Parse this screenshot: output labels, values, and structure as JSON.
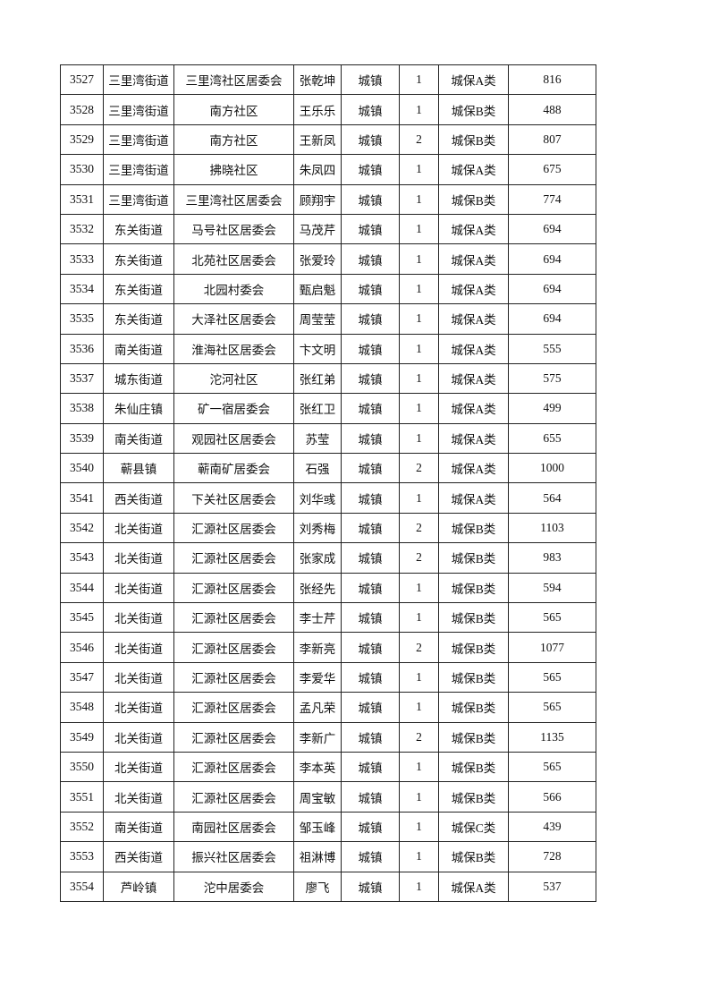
{
  "table": {
    "rows": [
      [
        "3527",
        "三里湾街道",
        "三里湾社区居委会",
        "张乾坤",
        "城镇",
        "1",
        "城保A类",
        "816"
      ],
      [
        "3528",
        "三里湾街道",
        "南方社区",
        "王乐乐",
        "城镇",
        "1",
        "城保B类",
        "488"
      ],
      [
        "3529",
        "三里湾街道",
        "南方社区",
        "王新凤",
        "城镇",
        "2",
        "城保B类",
        "807"
      ],
      [
        "3530",
        "三里湾街道",
        "拂晓社区",
        "朱凤四",
        "城镇",
        "1",
        "城保A类",
        "675"
      ],
      [
        "3531",
        "三里湾街道",
        "三里湾社区居委会",
        "顾翔宇",
        "城镇",
        "1",
        "城保B类",
        "774"
      ],
      [
        "3532",
        "东关街道",
        "马号社区居委会",
        "马茂芹",
        "城镇",
        "1",
        "城保A类",
        "694"
      ],
      [
        "3533",
        "东关街道",
        "北苑社区居委会",
        "张爱玲",
        "城镇",
        "1",
        "城保A类",
        "694"
      ],
      [
        "3534",
        "东关街道",
        "北园村委会",
        "甄启魁",
        "城镇",
        "1",
        "城保A类",
        "694"
      ],
      [
        "3535",
        "东关街道",
        "大泽社区居委会",
        "周莹莹",
        "城镇",
        "1",
        "城保A类",
        "694"
      ],
      [
        "3536",
        "南关街道",
        "淮海社区居委会",
        "卞文明",
        "城镇",
        "1",
        "城保A类",
        "555"
      ],
      [
        "3537",
        "城东街道",
        "沱河社区",
        "张红弟",
        "城镇",
        "1",
        "城保A类",
        "575"
      ],
      [
        "3538",
        "朱仙庄镇",
        "矿一宿居委会",
        "张红卫",
        "城镇",
        "1",
        "城保A类",
        "499"
      ],
      [
        "3539",
        "南关街道",
        "观园社区居委会",
        "苏莹",
        "城镇",
        "1",
        "城保A类",
        "655"
      ],
      [
        "3540",
        "蕲县镇",
        "蕲南矿居委会",
        "石强",
        "城镇",
        "2",
        "城保A类",
        "1000"
      ],
      [
        "3541",
        "西关街道",
        "下关社区居委会",
        "刘华彧",
        "城镇",
        "1",
        "城保A类",
        "564"
      ],
      [
        "3542",
        "北关街道",
        "汇源社区居委会",
        "刘秀梅",
        "城镇",
        "2",
        "城保B类",
        "1103"
      ],
      [
        "3543",
        "北关街道",
        "汇源社区居委会",
        "张家成",
        "城镇",
        "2",
        "城保B类",
        "983"
      ],
      [
        "3544",
        "北关街道",
        "汇源社区居委会",
        "张经先",
        "城镇",
        "1",
        "城保B类",
        "594"
      ],
      [
        "3545",
        "北关街道",
        "汇源社区居委会",
        "李士芹",
        "城镇",
        "1",
        "城保B类",
        "565"
      ],
      [
        "3546",
        "北关街道",
        "汇源社区居委会",
        "李新亮",
        "城镇",
        "2",
        "城保B类",
        "1077"
      ],
      [
        "3547",
        "北关街道",
        "汇源社区居委会",
        "李爱华",
        "城镇",
        "1",
        "城保B类",
        "565"
      ],
      [
        "3548",
        "北关街道",
        "汇源社区居委会",
        "孟凡荣",
        "城镇",
        "1",
        "城保B类",
        "565"
      ],
      [
        "3549",
        "北关街道",
        "汇源社区居委会",
        "李新广",
        "城镇",
        "2",
        "城保B类",
        "1135"
      ],
      [
        "3550",
        "北关街道",
        "汇源社区居委会",
        "李本英",
        "城镇",
        "1",
        "城保B类",
        "565"
      ],
      [
        "3551",
        "北关街道",
        "汇源社区居委会",
        "周宝敏",
        "城镇",
        "1",
        "城保B类",
        "566"
      ],
      [
        "3552",
        "南关街道",
        "南园社区居委会",
        "邹玉峰",
        "城镇",
        "1",
        "城保C类",
        "439"
      ],
      [
        "3553",
        "西关街道",
        "振兴社区居委会",
        "祖淋博",
        "城镇",
        "1",
        "城保B类",
        "728"
      ],
      [
        "3554",
        "芦岭镇",
        "沱中居委会",
        "廖飞",
        "城镇",
        "1",
        "城保A类",
        "537"
      ]
    ]
  }
}
